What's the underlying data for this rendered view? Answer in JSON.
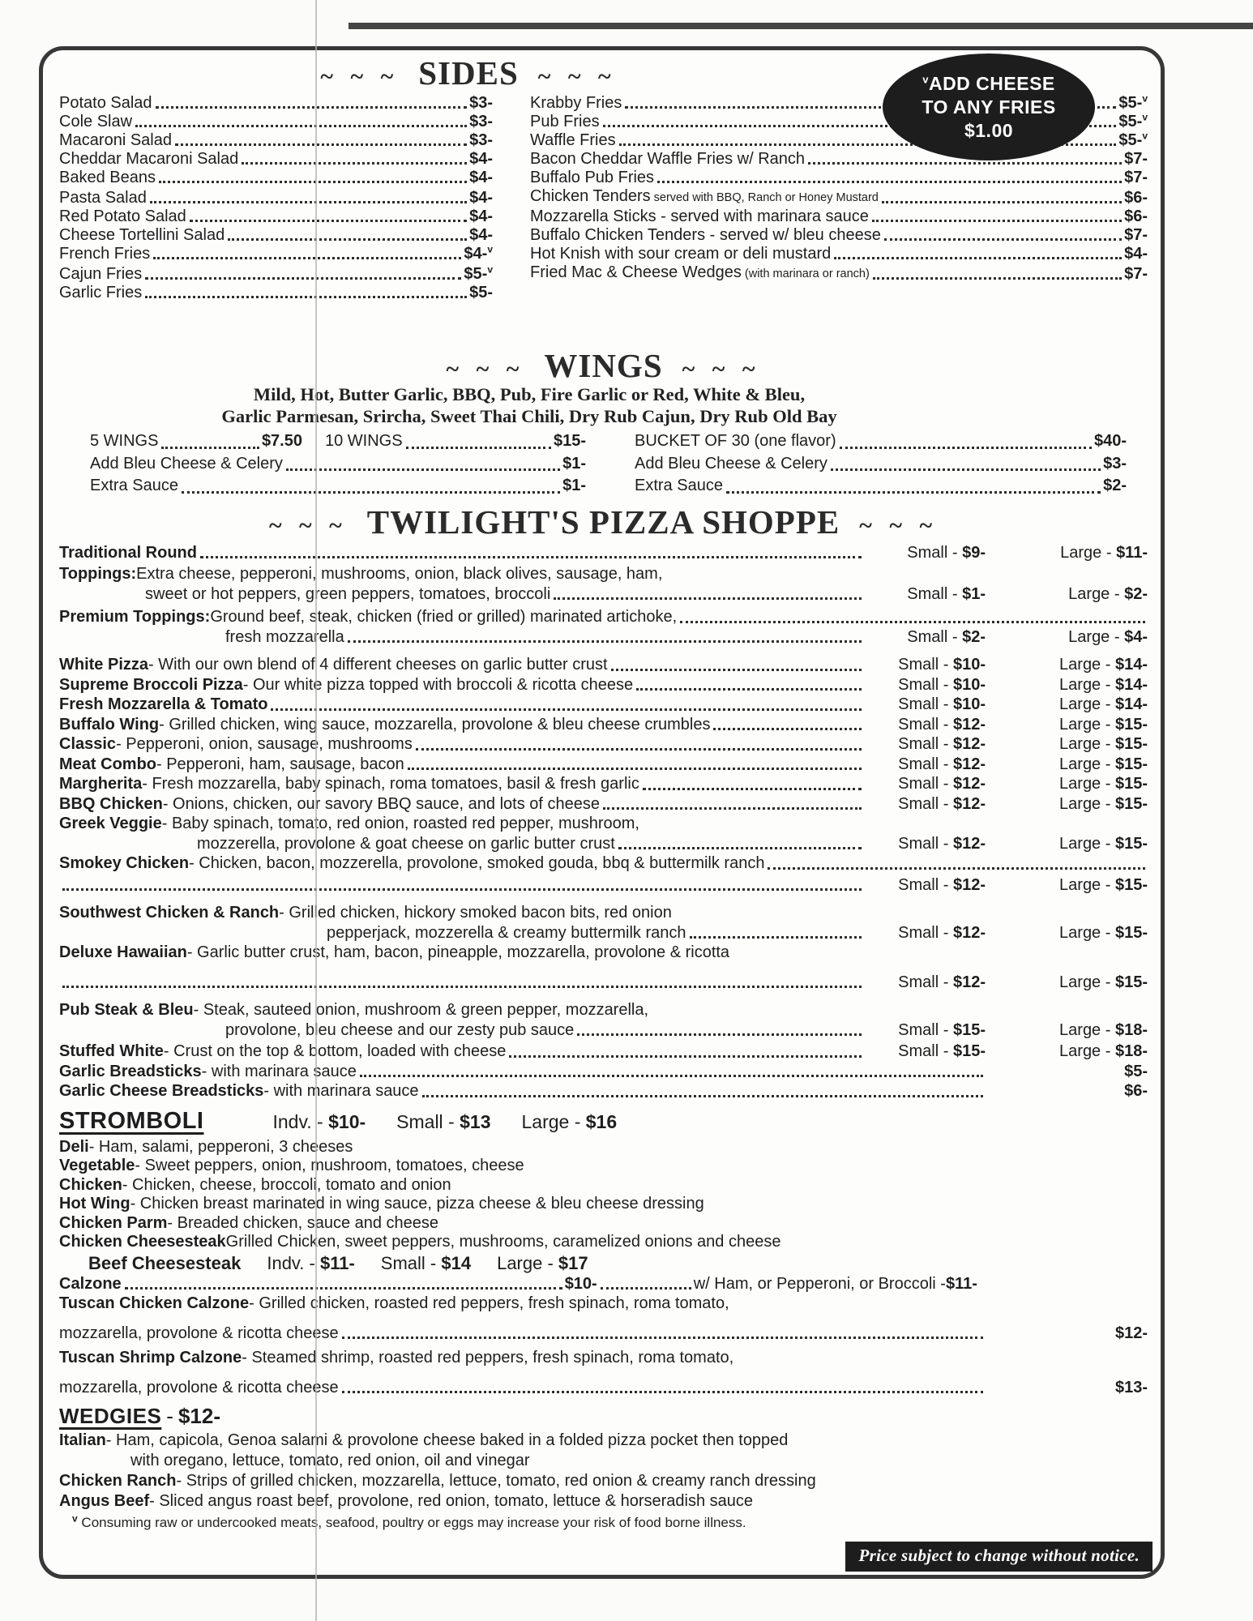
{
  "meta": {
    "v_mark": "v",
    "ink_color": "#1e1e1e",
    "badge_bg": "#1d1d1d",
    "notice_bg": "#1d1d1d"
  },
  "badge": {
    "line1": "ADD CHEESE",
    "line2": "TO ANY FRIES",
    "line3": "$1.00"
  },
  "sides": {
    "tildes": "~ ~ ~",
    "title": "SIDES",
    "rows": [
      {
        "l": {
          "n": "Potato Salad",
          "p": "$3-"
        },
        "r": {
          "n": "Krabby Fries",
          "p": "$5-",
          "v": true
        }
      },
      {
        "l": {
          "n": "Cole Slaw",
          "p": "$3-"
        },
        "r": {
          "n": "Pub Fries",
          "p": "$5-",
          "v": true
        }
      },
      {
        "l": {
          "n": "Macaroni Salad",
          "p": "$3-"
        },
        "r": {
          "n": "Waffle Fries",
          "p": "$5-",
          "v": true
        }
      },
      {
        "l": {
          "n": "Cheddar Macaroni Salad",
          "p": "$4-"
        },
        "r": {
          "n": "Bacon Cheddar Waffle Fries w/ Ranch",
          "p": "$7-"
        }
      },
      {
        "l": {
          "n": "Baked Beans",
          "p": "$4-"
        },
        "r": {
          "n": "Buffalo Pub Fries",
          "p": "$7-"
        }
      },
      {
        "l": {
          "n": "Pasta Salad",
          "p": "$4-"
        },
        "r": {
          "n": "Chicken Tenders",
          "sm": "served with BBQ, Ranch or Honey Mustard",
          "p": "$6-"
        }
      },
      {
        "l": {
          "n": "Red Potato Salad",
          "p": "$4-"
        },
        "r": {
          "n": "Mozzarella Sticks - served with marinara sauce",
          "p": "$6-"
        }
      },
      {
        "l": {
          "n": "Cheese Tortellini Salad",
          "p": "$4-"
        },
        "r": {
          "n": "Buffalo Chicken Tenders - served w/ bleu cheese",
          "p": "$7-"
        }
      },
      {
        "l": {
          "n": "French Fries",
          "p": "$4-",
          "v": true
        },
        "r": {
          "n": "Hot Knish with sour cream or deli mustard",
          "p": "$4-"
        }
      },
      {
        "l": {
          "n": "Cajun Fries",
          "p": "$5-",
          "v": true
        },
        "r": {
          "n": "Fried Mac & Cheese Wedges",
          "sm": "(with marinara or ranch)",
          "p": "$7-"
        }
      },
      {
        "l": {
          "n": "Garlic Fries",
          "p": "$5-"
        }
      }
    ]
  },
  "wings": {
    "tildes": "~ ~ ~",
    "title": "WINGS",
    "flavors1": "Mild, Hot, Butter Garlic, BBQ, Pub, Fire Garlic or Red, White & Bleu,",
    "flavors2": "Garlic Parmesan, Srircha, Sweet Thai Chili, Dry Rub Cajun, Dry Rub Old Bay",
    "rows": [
      {
        "a": {
          "n": "5 WINGS",
          "p": "$7.50"
        },
        "b": {
          "n": "10 WINGS",
          "p": "$15-"
        },
        "r": {
          "n": "BUCKET OF 30 (one flavor)",
          "p": "$40-"
        }
      },
      {
        "l": {
          "n": "Add Bleu Cheese & Celery",
          "p": "$1-"
        },
        "r": {
          "n": "Add Bleu Cheese & Celery",
          "p": "$3-"
        }
      },
      {
        "l": {
          "n": "Extra Sauce",
          "p": "$1-"
        },
        "r": {
          "n": "Extra Sauce",
          "p": "$2-"
        }
      }
    ]
  },
  "pizza": {
    "tildes": "~ ~ ~",
    "title": "TWILIGHT'S PIZZA SHOPPE",
    "small_label": "Small - ",
    "large_label": "Large - ",
    "lines": [
      {
        "b": "Traditional Round",
        "dots": true,
        "s": "$9-",
        "lg": "$11-"
      },
      {
        "b": "Toppings:",
        "d": "Extra cheese, pepperoni, mushrooms, onion, black olives, sausage, ham,"
      },
      {
        "ind": 106,
        "d": "sweet or hot peppers, green peppers, tomatoes, broccoli",
        "dots": true,
        "s": "$1-",
        "lg": "$2-"
      },
      {
        "b": "Premium Toppings:",
        "d": "Ground beef, steak, chicken (fried or grilled) marinated artichoke,",
        "dots": true
      },
      {
        "ind": 205,
        "d": "fresh mozzarella",
        "dots": true,
        "s": "$2-",
        "lg": "$4-"
      },
      {
        "b": "White Pizza",
        "d": "- With our own blend of 4 different cheeses on garlic butter crust",
        "dots": true,
        "s": "$10-",
        "lg": "$14-"
      },
      {
        "b": "Supreme Broccoli Pizza",
        "d": "- Our white pizza topped with broccoli & ricotta cheese",
        "dots": true,
        "s": "$10-",
        "lg": "$14-"
      },
      {
        "b": "Fresh Mozzarella & Tomato",
        "dots": true,
        "s": "$10-",
        "lg": "$14-"
      },
      {
        "b": "Buffalo Wing",
        "d": "- Grilled chicken, wing sauce, mozzarella, provolone & bleu cheese crumbles",
        "dots": true,
        "s": "$12-",
        "lg": "$15-"
      },
      {
        "b": "Classic",
        "d": "- Pepperoni, onion, sausage, mushrooms",
        "dots": true,
        "s": "$12-",
        "lg": "$15-"
      },
      {
        "b": "Meat Combo",
        "d": "- Pepperoni, ham, sausage, bacon",
        "dots": true,
        "s": "$12-",
        "lg": "$15-"
      },
      {
        "b": "Margherita",
        "d": "- Fresh mozzarella, baby spinach, roma tomatoes, basil & fresh garlic",
        "dots": true,
        "s": "$12-",
        "lg": "$15-"
      },
      {
        "b": "BBQ Chicken",
        "d": "- Onions, chicken, our savory BBQ sauce, and lots of cheese",
        "dots": true,
        "s": "$12-",
        "lg": "$15-"
      },
      {
        "b": "Greek Veggie",
        "d": "- Baby spinach, tomato, red onion, roasted red pepper, mushroom,"
      },
      {
        "ind": 170,
        "d": "mozzerella, provolone & goat cheese on garlic butter crust",
        "dots": true,
        "s": "$12-",
        "lg": "$15-"
      },
      {
        "b": "Smokey Chicken",
        "d": "- Chicken, bacon, mozzerella, provolone, smoked gouda, bbq & buttermilk ranch",
        "dots": true
      },
      {
        "dots": true,
        "s": "$12-",
        "lg": "$15-"
      },
      {
        "b": "Southwest Chicken & Ranch",
        "d": "- Grilled chicken, hickory smoked bacon bits, red onion"
      },
      {
        "ind": 330,
        "d": "pepperjack, mozzerella & creamy buttermilk ranch",
        "dots": true,
        "s": "$12-",
        "lg": "$15-"
      },
      {
        "b": "Deluxe Hawaiian",
        "d": "- Garlic butter crust, ham, bacon, pineapple, mozzarella, provolone & ricotta"
      },
      {
        "dots": true,
        "s": "$12-",
        "lg": "$15-"
      },
      {
        "b": "Pub Steak & Bleu",
        "d": "- Steak, sauteed onion, mushroom & green pepper, mozzarella,"
      },
      {
        "ind": 205,
        "d": "provolone, bleu cheese and our zesty pub sauce",
        "dots": true,
        "s": "$15-",
        "lg": "$18-"
      },
      {
        "b": "Stuffed White",
        "d": "- Crust on the top & bottom, loaded with cheese",
        "dots": true,
        "s": "$15-",
        "lg": "$18-"
      },
      {
        "b": "Garlic Breadsticks",
        "d": "- with marinara sauce",
        "dots": true,
        "p": "$5-"
      },
      {
        "b": "Garlic Cheese Breadsticks",
        "d": "- with marinara sauce",
        "dots": true,
        "p": "$6-"
      }
    ]
  },
  "stromboli": {
    "title": "STROMBOLI",
    "sizes": [
      {
        "lab": "Indv. - ",
        "p": "$10-"
      },
      {
        "lab": "Small - ",
        "p": "$13"
      },
      {
        "lab": "Large - ",
        "p": "$16"
      }
    ],
    "items": [
      {
        "b": "Deli",
        "d": "- Ham, salami, pepperoni, 3 cheeses"
      },
      {
        "b": "Vegetable",
        "d": "- Sweet peppers, onion, mushroom, tomatoes, cheese"
      },
      {
        "b": "Chicken",
        "d": "- Chicken, cheese, broccoli, tomato and onion"
      },
      {
        "b": "Hot Wing",
        "d": "- Chicken breast marinated in wing sauce, pizza cheese & bleu cheese dressing"
      },
      {
        "b": "Chicken Parm",
        "d": "- Breaded chicken, sauce and cheese"
      },
      {
        "b": "Chicken Cheesesteak",
        "d": "Grilled Chicken, sweet peppers, mushrooms, caramelized onions and cheese"
      }
    ],
    "beef": {
      "b": "Beef Cheesesteak",
      "sizes": [
        {
          "lab": "Indv. - ",
          "p": "$11-"
        },
        {
          "lab": "Small - ",
          "p": "$14"
        },
        {
          "lab": "Large - ",
          "p": "$17"
        }
      ]
    }
  },
  "calzones": {
    "calzone": {
      "b": "Calzone",
      "p1": "$10-",
      "mid": "w/ Ham, or Pepperoni, or Broccoli - ",
      "p2": "$11-"
    },
    "lines": [
      {
        "b": "Tuscan Chicken Calzone",
        "d": "- Grilled chicken, roasted red peppers, fresh spinach, roma tomato,"
      },
      {
        "d": "mozzarella, provolone & ricotta cheese",
        "dots": true,
        "p": "$12-"
      },
      {
        "b": "Tuscan Shrimp Calzone",
        "d": "- Steamed shrimp, roasted red peppers, fresh spinach, roma tomato,"
      },
      {
        "d": "mozzarella, provolone & ricotta cheese",
        "dots": true,
        "p": "$13-"
      }
    ]
  },
  "wedgies": {
    "title": "WEDGIES",
    "sep": " - ",
    "price": "$12-",
    "items": [
      {
        "b": "Italian",
        "d": "- Ham, capicola, Genoa salami & provolone cheese baked in a folded pizza pocket then topped"
      },
      {
        "ind": 88,
        "d": "with oregano, lettuce, tomato, red onion, oil and vinegar"
      },
      {
        "b": "Chicken Ranch",
        "d": "- Strips of grilled chicken, mozzarella, lettuce, tomato, red onion & creamy ranch dressing"
      },
      {
        "b": "Angus Beef",
        "d": "- Sliced angus roast beef, provolone, red onion, tomato, lettuce & horseradish sauce"
      }
    ]
  },
  "footnote": {
    "text": "Consuming raw or undercooked meats, seafood, poultry or eggs may increase your risk of food borne illness."
  },
  "notice": {
    "text": "Price subject to change without notice."
  }
}
